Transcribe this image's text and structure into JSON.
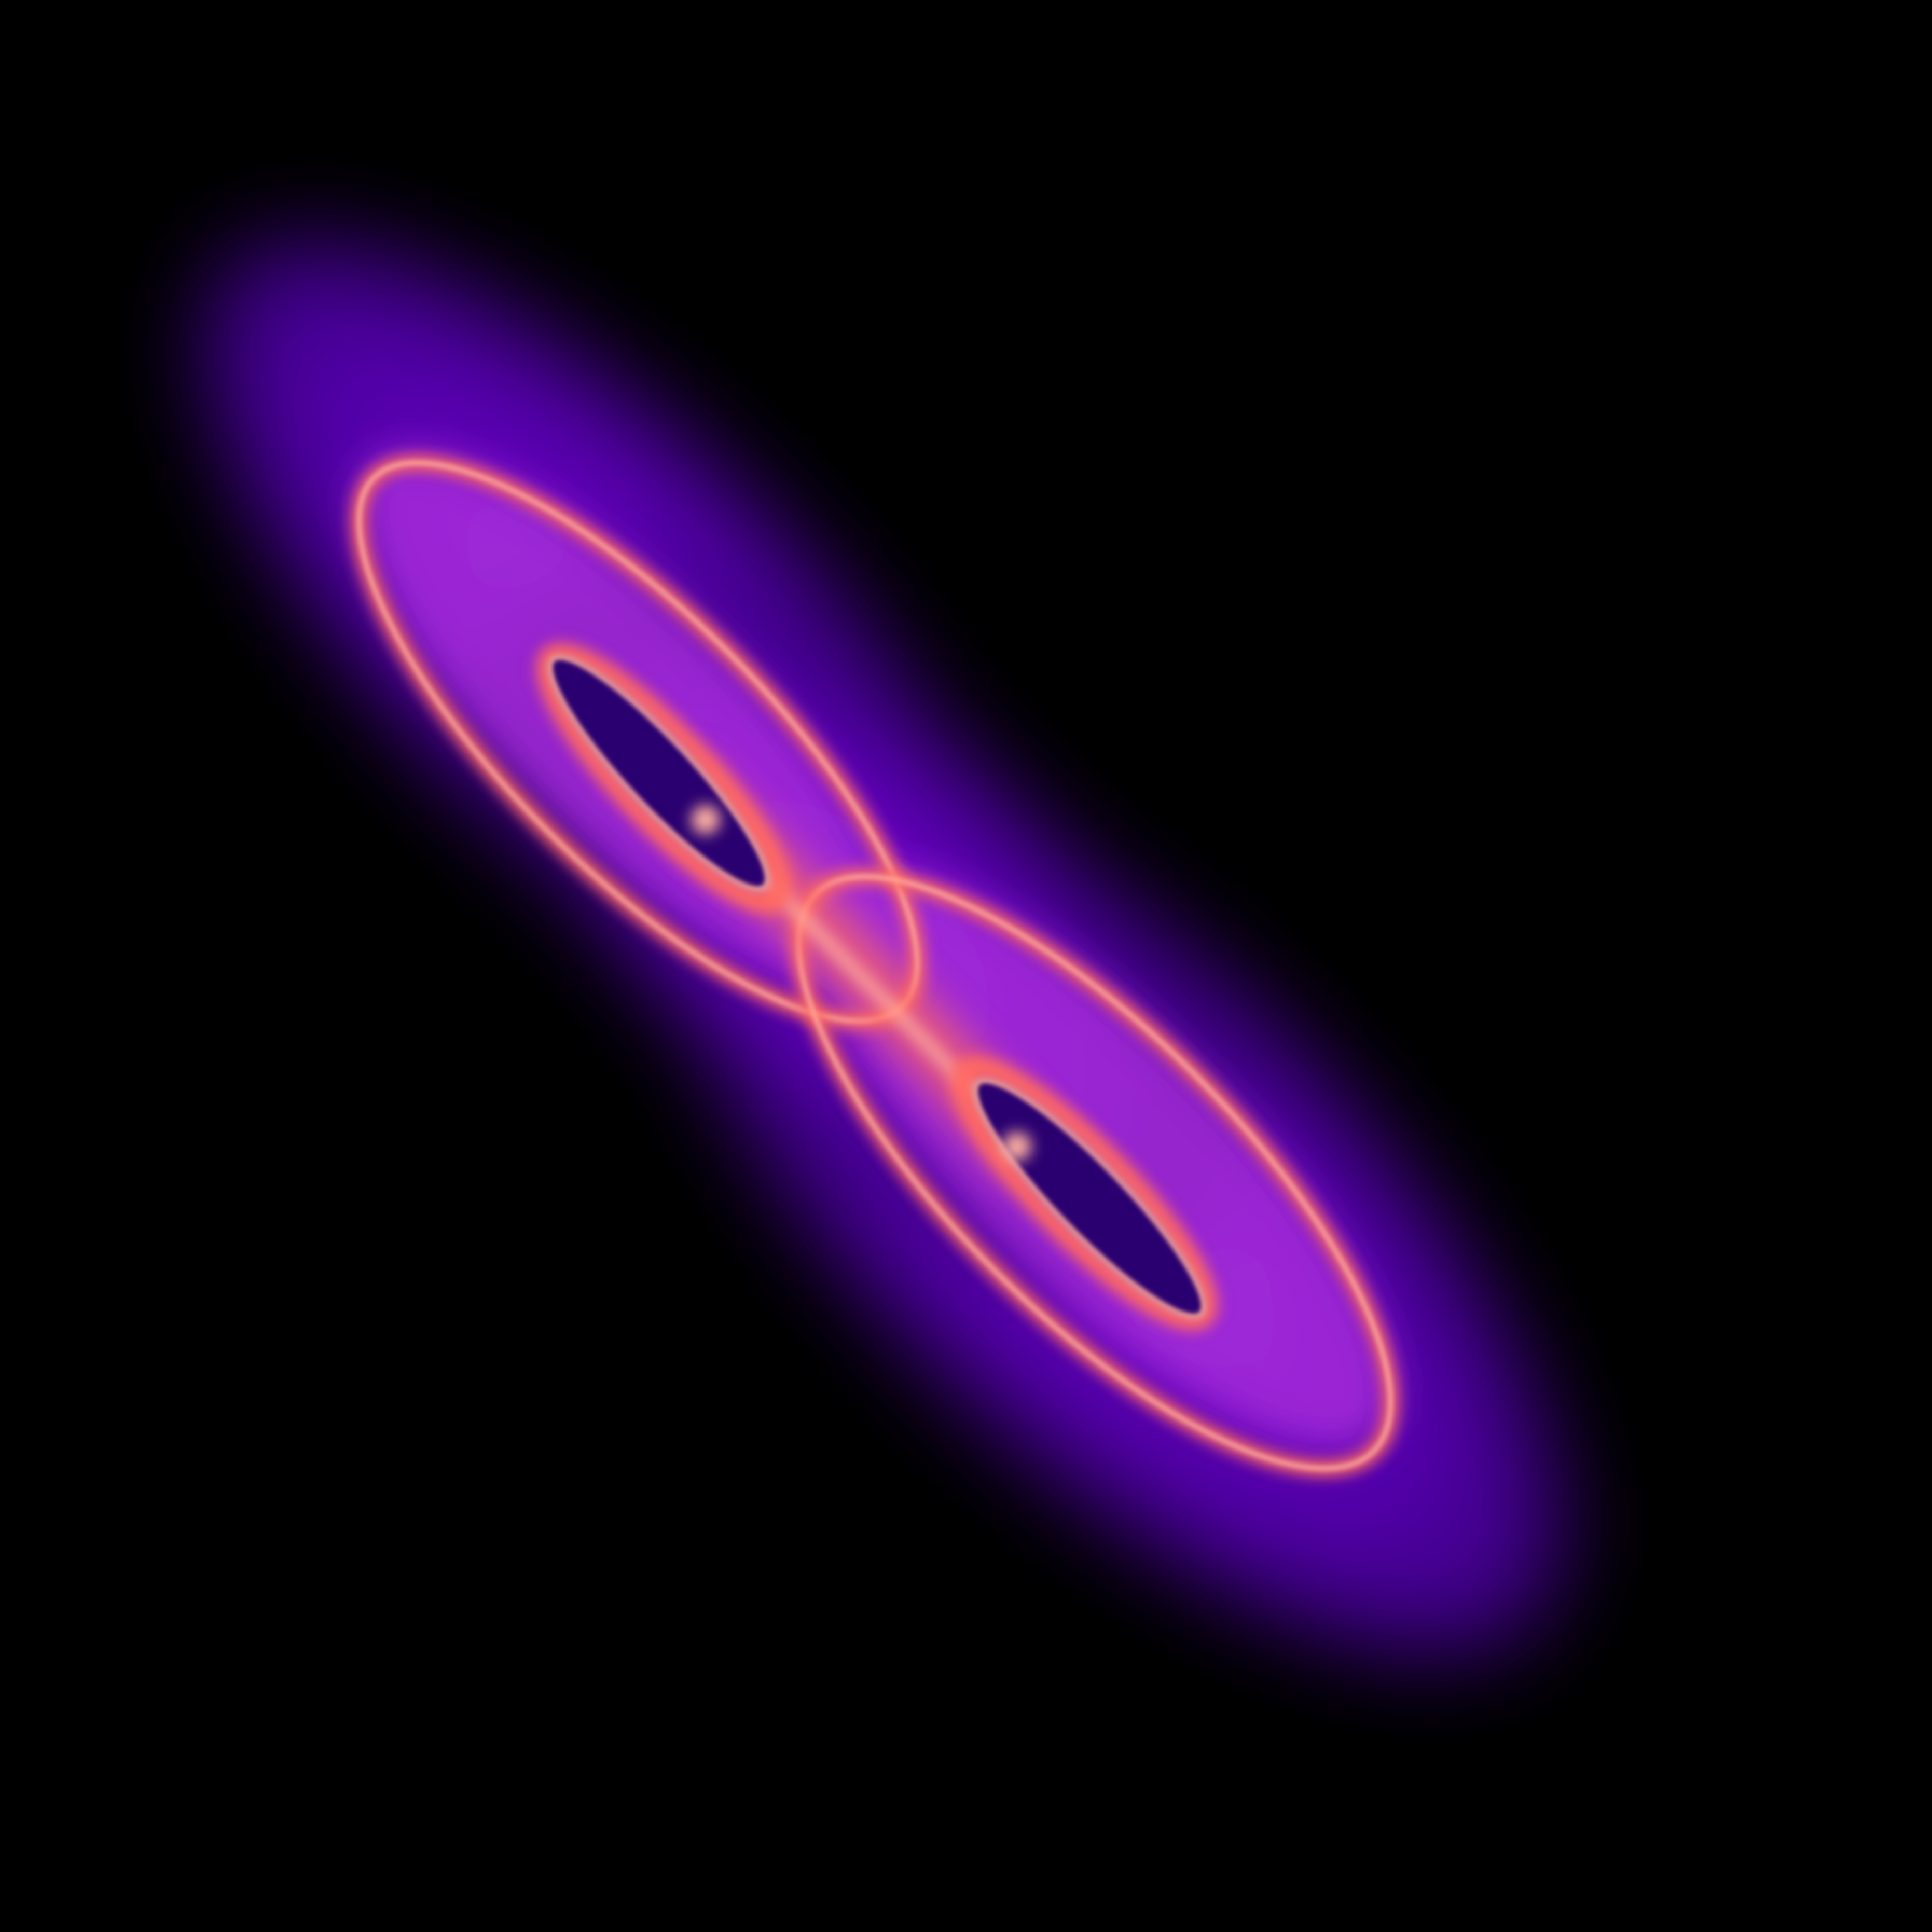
{
  "artwork": {
    "subject": "attractor-fractal-render",
    "colors": {
      "background": "#000000",
      "outer_glow": "#5a00b8",
      "body": "#7a0fd6",
      "mid": "#b030e0",
      "highlight": "#ff6a60",
      "core_highlight": "#ffb0a0",
      "hole": "#2a0070"
    }
  }
}
